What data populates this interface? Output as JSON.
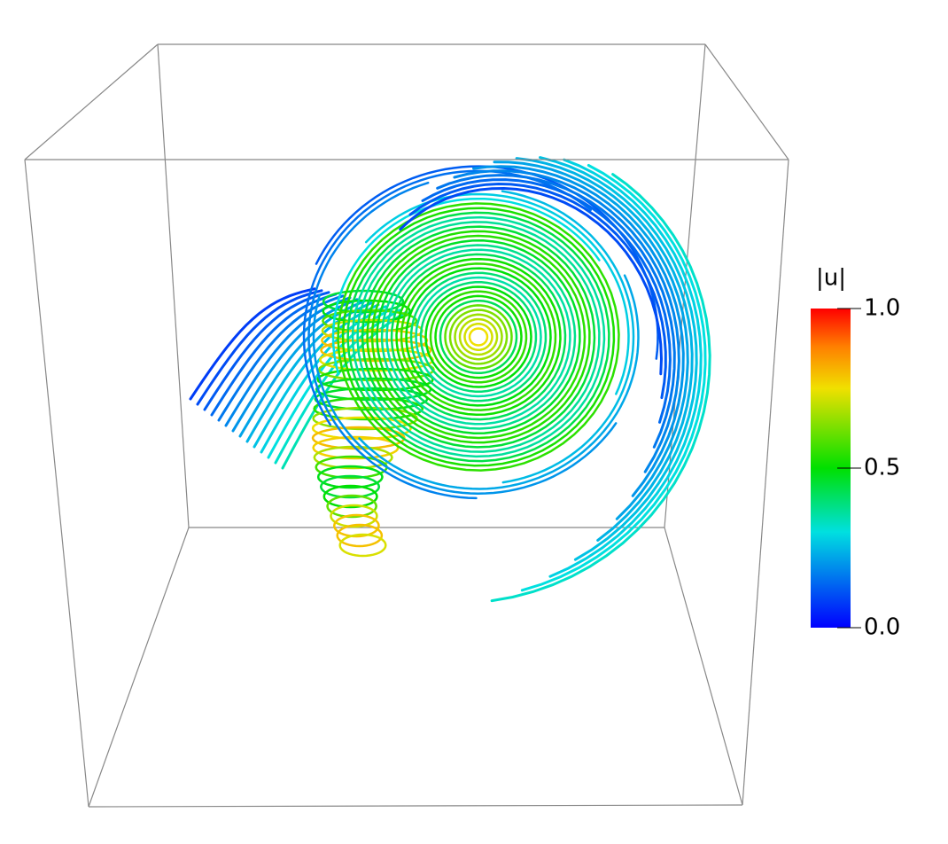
{
  "colorbar": {
    "title": "|u|",
    "range": [
      0,
      1
    ],
    "ticks": [
      {
        "value": 0,
        "label": "0.0"
      },
      {
        "value": 0.5,
        "label": "0.5"
      },
      {
        "value": 1,
        "label": "1.0"
      }
    ],
    "colormap": [
      {
        "value": 0,
        "color": "#0000ff"
      },
      {
        "value": 0.3,
        "color": "#00e0e0"
      },
      {
        "value": 0.5,
        "color": "#00e000"
      },
      {
        "value": 0.75,
        "color": "#f0e000"
      },
      {
        "value": 0.88,
        "color": "#ff8000"
      },
      {
        "value": 1,
        "color": "#ff0000"
      }
    ]
  }
}
